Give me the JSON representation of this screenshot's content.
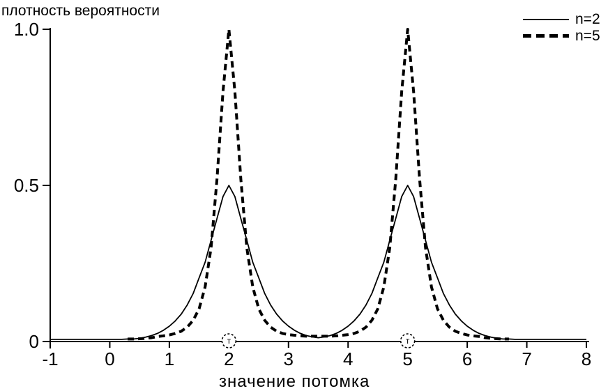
{
  "page": {
    "background": "#ffffff",
    "foreground": "#000000"
  },
  "chart_data": {
    "type": "line",
    "title": "",
    "y_axis_title": "плотность вероятности",
    "x_axis_title": "значение потомка",
    "x_range": [
      -1,
      8
    ],
    "y_range": [
      0,
      1.0
    ],
    "grid": false,
    "legend_position": "top-right",
    "x_ticks": [
      {
        "value": -1,
        "label": "-1"
      },
      {
        "value": 0,
        "label": "0"
      },
      {
        "value": 1,
        "label": "1"
      },
      {
        "value": 2,
        "label": "2"
      },
      {
        "value": 3,
        "label": "3"
      },
      {
        "value": 4,
        "label": "4"
      },
      {
        "value": 5,
        "label": "5"
      },
      {
        "value": 6,
        "label": "6"
      },
      {
        "value": 7,
        "label": "7"
      },
      {
        "value": 8,
        "label": "8"
      }
    ],
    "y_ticks": [
      {
        "value": 0,
        "label": "0"
      },
      {
        "value": 0.5,
        "label": "0.5"
      },
      {
        "value": 1.0,
        "label": "1.0"
      }
    ],
    "axis_markers": [
      {
        "x": 2,
        "label": "т"
      },
      {
        "x": 5,
        "label": "т"
      }
    ],
    "series": [
      {
        "name": "n=2",
        "line_style": "solid",
        "stroke_width": 1.8,
        "dash": "",
        "color": "#000000",
        "peaks": [
          {
            "x": 2,
            "y": 0.5
          },
          {
            "x": 5,
            "y": 0.5
          }
        ],
        "x": [
          -1,
          -0.9,
          -0.8,
          -0.7,
          -0.6,
          -0.5,
          -0.4,
          -0.3,
          -0.2,
          -0.1,
          0,
          0.1,
          0.2,
          0.3,
          0.4,
          0.5,
          0.6,
          0.7,
          0.8,
          0.9,
          1,
          1.1,
          1.2,
          1.3,
          1.4,
          1.5,
          1.6,
          1.7,
          1.8,
          1.9,
          2,
          2.1,
          2.2,
          2.3,
          2.4,
          2.5,
          2.6,
          2.7,
          2.8,
          2.9,
          3,
          3.1,
          3.2,
          3.3,
          3.4,
          3.5,
          3.6,
          3.7,
          3.8,
          3.9,
          4,
          4.1,
          4.2,
          4.3,
          4.4,
          4.5,
          4.6,
          4.7,
          4.8,
          4.9,
          5,
          5.1,
          5.2,
          5.3,
          5.4,
          5.5,
          5.6,
          5.7,
          5.8,
          5.9,
          6,
          6.1,
          6.2,
          6.3,
          6.4,
          6.5,
          6.6,
          6.7,
          6.8,
          6.9,
          7,
          7.1,
          7.2,
          7.3,
          7.4,
          7.5,
          7.6,
          7.7,
          7.8,
          7.9,
          8
        ],
        "y": [
          0.007,
          0.007,
          0.007,
          0.007,
          0.007,
          0.007,
          0.007,
          0.007,
          0.007,
          0.007,
          0.007,
          0.007,
          0.007,
          0.008,
          0.008,
          0.01,
          0.014,
          0.019,
          0.026,
          0.036,
          0.049,
          0.066,
          0.088,
          0.117,
          0.154,
          0.204,
          0.254,
          0.324,
          0.394,
          0.464,
          0.5,
          0.464,
          0.394,
          0.324,
          0.254,
          0.204,
          0.154,
          0.117,
          0.088,
          0.066,
          0.049,
          0.036,
          0.026,
          0.019,
          0.015,
          0.012,
          0.015,
          0.019,
          0.026,
          0.036,
          0.049,
          0.066,
          0.088,
          0.117,
          0.154,
          0.204,
          0.254,
          0.324,
          0.394,
          0.464,
          0.5,
          0.464,
          0.394,
          0.324,
          0.254,
          0.204,
          0.154,
          0.117,
          0.088,
          0.066,
          0.049,
          0.036,
          0.026,
          0.019,
          0.014,
          0.01,
          0.008,
          0.008,
          0.007,
          0.007,
          0.007,
          0.007,
          0.007,
          0.007,
          0.007,
          0.007,
          0.007,
          0.007,
          0.007,
          0.007,
          0.007
        ]
      },
      {
        "name": "n=5",
        "line_style": "dashed",
        "stroke_width": 4,
        "dash": "9 6",
        "color": "#000000",
        "peaks": [
          {
            "x": 2,
            "y": 1.0
          },
          {
            "x": 5,
            "y": 1.0
          }
        ],
        "x": [
          0.3,
          0.4,
          0.5,
          0.6,
          0.7,
          0.8,
          0.9,
          1,
          1.1,
          1.2,
          1.3,
          1.4,
          1.5,
          1.6,
          1.7,
          1.8,
          1.9,
          2,
          2.1,
          2.2,
          2.3,
          2.4,
          2.5,
          2.6,
          2.7,
          2.8,
          2.9,
          3,
          3.1,
          3.2,
          3.3,
          3.4,
          3.5,
          3.6,
          3.7,
          3.8,
          3.9,
          4,
          4.1,
          4.2,
          4.3,
          4.4,
          4.5,
          4.6,
          4.7,
          4.8,
          4.9,
          5,
          5.1,
          5.2,
          5.3,
          5.4,
          5.5,
          5.6,
          5.7,
          5.8,
          5.9,
          6,
          6.1,
          6.2,
          6.3,
          6.4,
          6.5,
          6.6,
          6.7
        ],
        "y": [
          0.008,
          0.008,
          0.009,
          0.01,
          0.012,
          0.016,
          0.018,
          0.021,
          0.026,
          0.033,
          0.046,
          0.068,
          0.105,
          0.175,
          0.3,
          0.52,
          0.8,
          1,
          0.8,
          0.52,
          0.3,
          0.175,
          0.105,
          0.068,
          0.046,
          0.033,
          0.026,
          0.022,
          0.02,
          0.018,
          0.017,
          0.017,
          0.017,
          0.017,
          0.017,
          0.018,
          0.02,
          0.022,
          0.026,
          0.033,
          0.046,
          0.068,
          0.105,
          0.175,
          0.3,
          0.52,
          0.8,
          1,
          0.8,
          0.52,
          0.3,
          0.175,
          0.105,
          0.068,
          0.046,
          0.033,
          0.026,
          0.021,
          0.018,
          0.016,
          0.012,
          0.01,
          0.009,
          0.008,
          0.008
        ]
      }
    ]
  }
}
